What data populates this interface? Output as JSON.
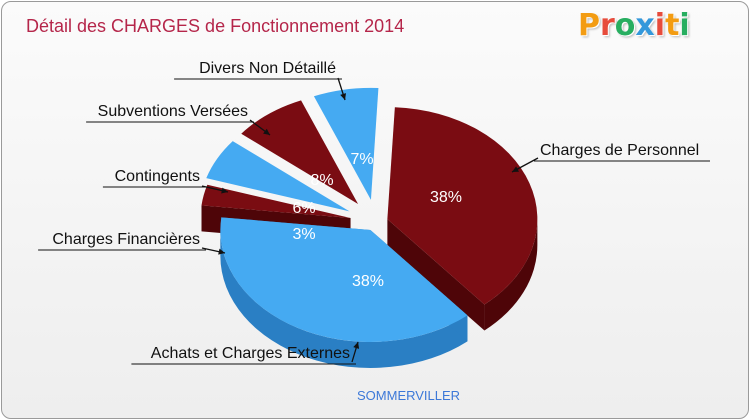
{
  "chart_data": {
    "type": "pie",
    "title": "Détail des CHARGES de Fonctionnement 2014",
    "subtitle": "SOMMERVILLER",
    "slices": [
      {
        "label": "Charges de Personnel",
        "value": 38,
        "percent_label": "38%",
        "color": "#7a0c12",
        "side": "#4e0508"
      },
      {
        "label": "Achats et Charges Externes",
        "value": 38,
        "percent_label": "38%",
        "color": "#45aaf2",
        "side": "#2a7fc4"
      },
      {
        "label": "Charges Financières",
        "value": 3,
        "percent_label": "3%",
        "color": "#7a0c12",
        "side": "#4e0508"
      },
      {
        "label": "Contingents",
        "value": 6,
        "percent_label": "6%",
        "color": "#45aaf2",
        "side": "#2a7fc4"
      },
      {
        "label": "Subventions Versées",
        "value": 8,
        "percent_label": "8%",
        "color": "#7a0c12",
        "side": "#4e0508"
      },
      {
        "label": "Divers Non Détaillé",
        "value": 7,
        "percent_label": "7%",
        "color": "#45aaf2",
        "side": "#2a7fc4"
      }
    ]
  },
  "logo": {
    "letters": [
      "P",
      "r",
      "o",
      "x",
      "i",
      "t",
      "i"
    ],
    "colors": [
      "#f39c12",
      "#e74c3c",
      "#27ae60",
      "#3498db",
      "#e74c3c",
      "#f39c12",
      "#27ae60"
    ]
  }
}
